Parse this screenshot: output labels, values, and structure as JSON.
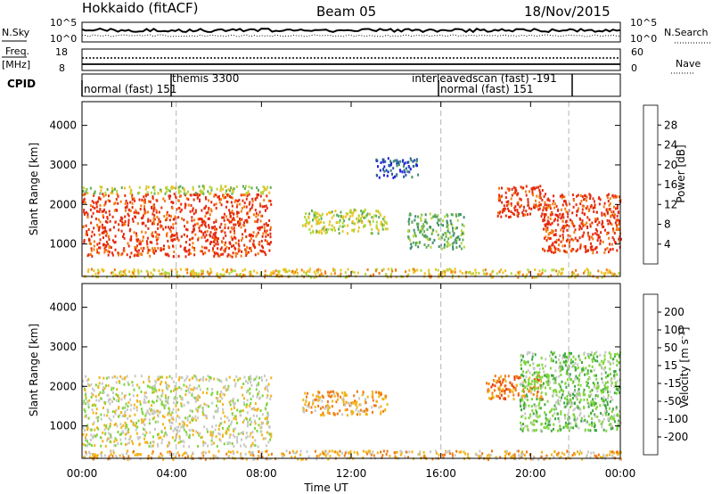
{
  "header": {
    "title_left": "Hokkaido (fitACF)",
    "title_center": "Beam 05",
    "title_right": "18/Nov/2015"
  },
  "top_panels": {
    "nsky_label": "N.Sky",
    "nsky_ticks": [
      "10^5",
      "10^0"
    ],
    "nsearch_label": "N.Search",
    "nsearch_ticks": [
      "10^5",
      "10^0"
    ],
    "freq_label": "Freq.",
    "freq_unit": "[MHz]",
    "freq_ticks": [
      "18",
      "8"
    ],
    "nave_label": "Nave",
    "nave_ticks": [
      "60",
      "0"
    ],
    "cpid_label": "CPID",
    "cpid_segments": [
      {
        "label": "normal (fast) 151",
        "start": 0,
        "end": 4.2
      },
      {
        "label": "themis 3300",
        "start": 4.2,
        "end": 16.0
      },
      {
        "label": "interleavedscan (fast) -191",
        "start": 16.0,
        "end": 16.0
      },
      {
        "label": "normal (fast) 151",
        "start": 16.0,
        "end": 21.7
      }
    ]
  },
  "chart_data": [
    {
      "type": "heatmap",
      "name": "power",
      "ylabel": "Slant Range [km]",
      "xlabel": "Time UT",
      "xlim": [
        0,
        24
      ],
      "ylim": [
        180,
        4600
      ],
      "yticks": [
        1000,
        2000,
        3000,
        4000
      ],
      "xtick_labels": [
        "00:00",
        "04:00",
        "08:00",
        "12:00",
        "16:00",
        "20:00",
        "00:00"
      ],
      "colorbar": {
        "label": "Power [dB]",
        "ticks": [
          "4",
          "8",
          "12",
          "16",
          "20",
          "24",
          "28"
        ],
        "colors": [
          "#1e1ee6",
          "#2a55a8",
          "#3d8a6e",
          "#5fae58",
          "#b5d63a",
          "#f0c020",
          "#f57a10",
          "#e62a0c"
        ]
      },
      "regions": [
        {
          "t0": 0,
          "t1": 8.4,
          "r0": 700,
          "r1": 2300,
          "level": 7
        },
        {
          "t0": 0,
          "t1": 8.4,
          "r0": 2300,
          "r1": 2500,
          "level": 4
        },
        {
          "t0": 9.8,
          "t1": 13.6,
          "r0": 1300,
          "r1": 1900,
          "level": 4
        },
        {
          "t0": 13.0,
          "t1": 15.0,
          "r0": 2700,
          "r1": 3200,
          "level": 1
        },
        {
          "t0": 14.5,
          "t1": 17.0,
          "r0": 900,
          "r1": 1800,
          "level": 3
        },
        {
          "t0": 18.5,
          "t1": 20.5,
          "r0": 1700,
          "r1": 2500,
          "level": 7
        },
        {
          "t0": 20.5,
          "t1": 24,
          "r0": 800,
          "r1": 2300,
          "level": 7
        },
        {
          "t0": 0,
          "t1": 24,
          "r0": 180,
          "r1": 400,
          "level": 5
        }
      ]
    },
    {
      "type": "heatmap",
      "name": "velocity",
      "ylabel": "Slant Range [km]",
      "xlabel": "Time UT",
      "xlim": [
        0,
        24
      ],
      "ylim": [
        180,
        4600
      ],
      "yticks": [
        1000,
        2000,
        3000,
        4000
      ],
      "xtick_labels": [
        "00:00",
        "04:00",
        "08:00",
        "12:00",
        "16:00",
        "20:00",
        "00:00"
      ],
      "colorbar": {
        "label": "Velocity [m s^-1]",
        "ticks": [
          "200",
          "100",
          "50",
          "15",
          "-15",
          "-50",
          "-100",
          "-200"
        ],
        "colors": [
          "#1e3cc8",
          "#1e7a3c",
          "#3fa83f",
          "#7ed63a",
          "#c8c8c4",
          "#f2b418",
          "#f07812",
          "#e83c10",
          "#e6100e"
        ]
      },
      "regions": [
        {
          "t0": 0,
          "t1": 8.4,
          "r0": 500,
          "r1": 2300,
          "level": 4
        },
        {
          "t0": 9.8,
          "t1": 13.6,
          "r0": 1300,
          "r1": 1900,
          "level": 5
        },
        {
          "t0": 18.0,
          "t1": 20.5,
          "r0": 1700,
          "r1": 2300,
          "level": 6
        },
        {
          "t0": 19.5,
          "t1": 24,
          "r0": 900,
          "r1": 2900,
          "level": 3
        },
        {
          "t0": 0,
          "t1": 24,
          "r0": 180,
          "r1": 400,
          "level": 5
        }
      ]
    }
  ]
}
